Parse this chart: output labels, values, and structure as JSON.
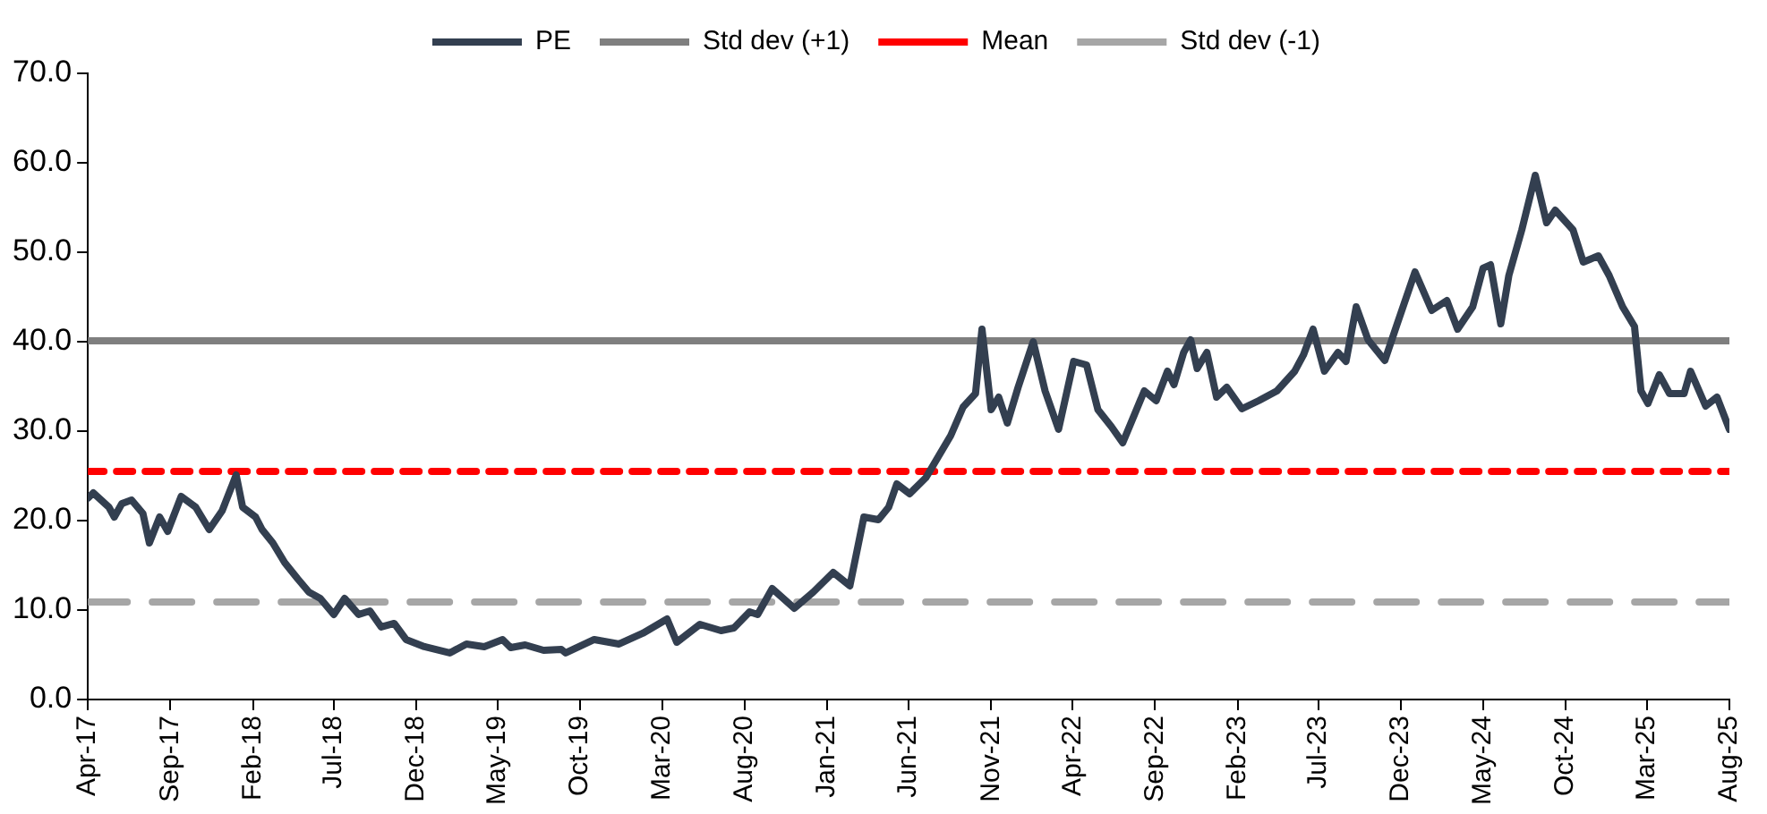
{
  "chart_data": {
    "type": "line",
    "legend": "top",
    "grid": false,
    "marker": "none",
    "xlim": [
      "2017-04-01",
      "2025-08-01"
    ],
    "xticks": [
      {
        "value": "2017-04",
        "label": "Apr-17"
      },
      {
        "value": "2017-09",
        "label": "Sep-17"
      },
      {
        "value": "2018-02",
        "label": "Feb-18"
      },
      {
        "value": "2018-07",
        "label": "Jul-18"
      },
      {
        "value": "2018-12",
        "label": "Dec-18"
      },
      {
        "value": "2019-05",
        "label": "May-19"
      },
      {
        "value": "2019-10",
        "label": "Oct-19"
      },
      {
        "value": "2020-03",
        "label": "Mar-20"
      },
      {
        "value": "2020-08",
        "label": "Aug-20"
      },
      {
        "value": "2021-01",
        "label": "Jan-21"
      },
      {
        "value": "2021-06",
        "label": "Jun-21"
      },
      {
        "value": "2021-11",
        "label": "Nov-21"
      },
      {
        "value": "2022-04",
        "label": "Apr-22"
      },
      {
        "value": "2022-09",
        "label": "Sep-22"
      },
      {
        "value": "2023-02",
        "label": "Feb-23"
      },
      {
        "value": "2023-07",
        "label": "Jul-23"
      },
      {
        "value": "2023-12",
        "label": "Dec-23"
      },
      {
        "value": "2024-05",
        "label": "May-24"
      },
      {
        "value": "2024-10",
        "label": "Oct-24"
      },
      {
        "value": "2025-03",
        "label": "Mar-25"
      },
      {
        "value": "2025-08",
        "label": "Aug-25"
      }
    ],
    "ylim": [
      0,
      70
    ],
    "yticks": [
      {
        "value": 0,
        "label": "0.0"
      },
      {
        "value": 10,
        "label": "10.0"
      },
      {
        "value": 20,
        "label": "20.0"
      },
      {
        "value": 30,
        "label": "30.0"
      },
      {
        "value": 40,
        "label": "40.0"
      },
      {
        "value": 50,
        "label": "50.0"
      },
      {
        "value": 60,
        "label": "60.0"
      },
      {
        "value": 70,
        "label": "70.0"
      }
    ],
    "series": [
      {
        "name": "PE",
        "color": "#333f50",
        "line_style": "solid",
        "x": [
          "2017-04-01",
          "2017-04-11",
          "2017-05-10",
          "2017-05-20",
          "2017-06-03",
          "2017-06-21",
          "2017-07-12",
          "2017-07-24",
          "2017-08-12",
          "2017-08-27",
          "2017-09-21",
          "2017-10-18",
          "2017-11-12",
          "2017-12-06",
          "2018-01-01",
          "2018-01-13",
          "2018-02-06",
          "2018-02-18",
          "2018-03-10",
          "2018-04-01",
          "2018-04-25",
          "2018-05-16",
          "2018-06-06",
          "2018-07-01",
          "2018-07-21",
          "2018-08-16",
          "2018-09-06",
          "2018-09-27",
          "2018-10-21",
          "2018-11-12",
          "2018-12-16",
          "2019-02-01",
          "2019-03-04",
          "2019-04-06",
          "2019-05-10",
          "2019-05-25",
          "2019-06-21",
          "2019-07-25",
          "2019-08-27",
          "2019-09-04",
          "2019-10-27",
          "2019-12-12",
          "2020-01-25",
          "2020-03-10",
          "2020-03-28",
          "2020-05-10",
          "2020-06-18",
          "2020-07-12",
          "2020-08-10",
          "2020-08-25",
          "2020-09-21",
          "2020-11-01",
          "2020-12-06",
          "2021-01-12",
          "2021-02-12",
          "2021-03-10",
          "2021-04-06",
          "2021-04-25",
          "2021-05-10",
          "2021-06-03",
          "2021-07-03",
          "2021-08-18",
          "2021-09-10",
          "2021-10-03",
          "2021-10-15",
          "2021-11-01",
          "2021-11-15",
          "2021-12-01",
          "2021-12-21",
          "2022-01-18",
          "2022-02-09",
          "2022-03-06",
          "2022-04-03",
          "2022-04-27",
          "2022-05-18",
          "2022-06-12",
          "2022-07-03",
          "2022-08-12",
          "2022-09-03",
          "2022-09-24",
          "2022-10-06",
          "2022-10-24",
          "2022-11-06",
          "2022-11-18",
          "2022-12-06",
          "2022-12-24",
          "2023-01-12",
          "2023-02-09",
          "2023-03-12",
          "2023-04-15",
          "2023-05-18",
          "2023-06-03",
          "2023-06-21",
          "2023-07-12",
          "2023-08-06",
          "2023-08-21",
          "2023-09-09",
          "2023-10-01",
          "2023-11-01",
          "2023-11-24",
          "2023-12-27",
          "2024-01-27",
          "2024-02-24",
          "2024-03-15",
          "2024-04-12",
          "2024-05-01",
          "2024-05-15",
          "2024-06-03",
          "2024-06-18",
          "2024-07-12",
          "2024-08-06",
          "2024-08-27",
          "2024-09-12",
          "2024-10-15",
          "2024-11-03",
          "2024-12-01",
          "2024-12-21",
          "2025-01-15",
          "2025-02-06",
          "2025-02-18",
          "2025-03-03",
          "2025-03-24",
          "2025-04-12",
          "2025-05-09",
          "2025-05-21",
          "2025-06-18",
          "2025-07-09",
          "2025-08-01"
        ],
        "values": [
          22.5,
          23.1,
          21.5,
          20.4,
          21.9,
          22.3,
          20.8,
          17.5,
          20.4,
          18.8,
          22.7,
          21.5,
          19.0,
          21.1,
          25.1,
          21.5,
          20.4,
          19.0,
          17.5,
          15.3,
          13.5,
          12.0,
          11.3,
          9.5,
          11.3,
          9.5,
          9.9,
          8.1,
          8.5,
          6.7,
          5.9,
          5.2,
          6.2,
          5.9,
          6.7,
          5.8,
          6.1,
          5.5,
          5.6,
          5.2,
          6.7,
          6.2,
          7.4,
          9.0,
          6.4,
          8.4,
          7.7,
          8.0,
          9.8,
          9.5,
          12.4,
          10.2,
          12.0,
          14.2,
          12.7,
          20.4,
          20.1,
          21.5,
          24.1,
          23.0,
          24.8,
          29.5,
          32.7,
          34.2,
          41.4,
          32.4,
          33.8,
          30.9,
          34.9,
          40.0,
          34.5,
          30.2,
          37.8,
          37.4,
          32.4,
          30.5,
          28.7,
          34.5,
          33.4,
          36.7,
          35.2,
          38.8,
          40.2,
          37.0,
          38.8,
          33.8,
          34.9,
          32.5,
          33.4,
          34.5,
          36.7,
          38.5,
          41.4,
          36.7,
          38.8,
          37.8,
          43.9,
          40.2,
          37.9,
          42.0,
          47.8,
          43.5,
          44.6,
          41.4,
          43.9,
          48.2,
          48.6,
          42.0,
          47.4,
          52.5,
          58.6,
          53.3,
          54.7,
          52.5,
          48.9,
          49.6,
          47.4,
          43.9,
          41.7,
          34.5,
          33.1,
          36.3,
          34.2,
          34.2,
          36.7,
          32.8,
          33.8,
          30.2
        ]
      },
      {
        "name": "Std dev (+1)",
        "color": "#7f7f7f",
        "line_style": "solid",
        "x": [
          "2017-04-01",
          "2025-08-01"
        ],
        "values": [
          40.1,
          40.1
        ]
      },
      {
        "name": "Mean",
        "color": "#ff0000",
        "line_style": "dotted",
        "x": [
          "2017-04-01",
          "2025-08-01"
        ],
        "values": [
          25.5,
          25.5
        ]
      },
      {
        "name": "Std dev (-1)",
        "color": "#a6a6a6",
        "line_style": "dashed",
        "x": [
          "2017-04-01",
          "2025-08-01"
        ],
        "values": [
          10.9,
          10.9
        ]
      }
    ]
  }
}
